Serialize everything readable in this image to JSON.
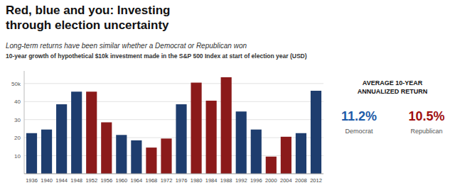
{
  "chart_data": {
    "type": "bar",
    "title": "Red, blue and you: Investing\nthrough election uncertainty",
    "subtitle": [
      "Long-term returns have been similar whether a Democrat or Republican won",
      "10-year growth of hypothetical $10k investment made in the S&P 500 Index at start of election year (USD)"
    ],
    "categories": [
      "1936",
      "1940",
      "1944",
      "1948",
      "1952",
      "1956",
      "1960",
      "1964",
      "1968",
      "1972",
      "1976",
      "1980",
      "1984",
      "1988",
      "1992",
      "1996",
      "2000",
      "2004",
      "2008",
      "2012"
    ],
    "values": [
      22.5,
      24.5,
      38.5,
      45.5,
      45.5,
      28.5,
      21.5,
      18.5,
      14.5,
      19.5,
      38.5,
      50.5,
      40.5,
      53.5,
      34.5,
      24.5,
      9.5,
      20.5,
      22.5,
      46.0
    ],
    "colors": [
      "#1e3d6e",
      "#1e3d6e",
      "#1e3d6e",
      "#1e3d6e",
      "#8b1a1a",
      "#8b1a1a",
      "#1e3d6e",
      "#1e3d6e",
      "#8b1a1a",
      "#8b1a1a",
      "#1e3d6e",
      "#8b1a1a",
      "#8b1a1a",
      "#8b1a1a",
      "#1e3d6e",
      "#1e3d6e",
      "#8b1a1a",
      "#8b1a1a",
      "#1e3d6e",
      "#1e3d6e"
    ],
    "ylim": [
      0,
      57
    ],
    "yticks": [
      10,
      20,
      30,
      40,
      {
        "value": 50,
        "label": "50k"
      }
    ],
    "grid": true,
    "annotations": [
      {
        "text": "AVERAGE 10-YEAR\nANNUALIZED RETURN"
      },
      {
        "text": "11.2%",
        "color": "#1e5ba8"
      },
      {
        "text": "10.5%",
        "color": "#a01010"
      },
      {
        "text": "Democrat"
      },
      {
        "text": "Republican"
      }
    ]
  }
}
